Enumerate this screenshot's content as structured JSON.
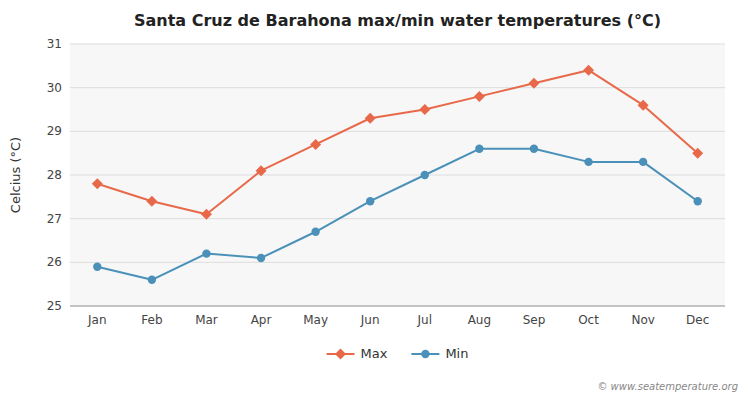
{
  "chart_data": {
    "type": "line",
    "title": "Santa Cruz de Barahona max/min water temperatures (°C)",
    "y_label": "Celcius (°C)",
    "categories": [
      "Jan",
      "Feb",
      "Mar",
      "Apr",
      "May",
      "Jun",
      "Jul",
      "Aug",
      "Sep",
      "Oct",
      "Nov",
      "Dec"
    ],
    "series": [
      {
        "name": "Max",
        "color": "#e8694a",
        "marker": "diamond",
        "line_style": "solid",
        "values": [
          27.8,
          27.4,
          27.1,
          28.1,
          28.7,
          29.3,
          29.5,
          29.8,
          30.1,
          30.4,
          29.6,
          28.5
        ]
      },
      {
        "name": "Min",
        "color": "#4a90b8",
        "marker": "circle",
        "line_style": "solid",
        "values": [
          25.9,
          25.6,
          26.2,
          26.1,
          26.7,
          27.4,
          28.0,
          28.6,
          28.6,
          28.3,
          28.3,
          27.4
        ]
      }
    ],
    "ylim": [
      25.0,
      31.0
    ],
    "yticks": [
      25,
      26,
      27,
      28,
      29,
      30,
      31
    ],
    "grid": true,
    "legend": "bottom",
    "annotations": [
      "© www.seatemperature.org"
    ]
  }
}
